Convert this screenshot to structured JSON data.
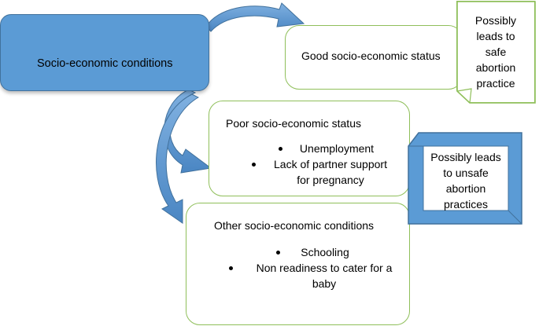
{
  "diagram": {
    "main": {
      "label": "Socio-economic conditions"
    },
    "good": {
      "label": "Good socio-economic status"
    },
    "good_note": {
      "lines": [
        "Possibly",
        "leads to",
        "safe",
        "abortion",
        "practice"
      ]
    },
    "poor": {
      "title": "Poor socio-economic status",
      "items": [
        "Unemployment",
        "Lack of partner support",
        "for pregnancy"
      ]
    },
    "poor_note": {
      "lines": [
        "Possibly leads",
        "to unsafe",
        "abortion",
        "practices"
      ]
    },
    "other": {
      "title": "Other socio-economic conditions",
      "items": [
        "Schooling",
        "Non readiness to cater for a",
        "baby"
      ]
    },
    "colors": {
      "main_fill": "#5b9bd5",
      "main_border": "#41719c",
      "green_border": "#8fbf5a",
      "arrow_fill": "#5b9bd5"
    }
  }
}
